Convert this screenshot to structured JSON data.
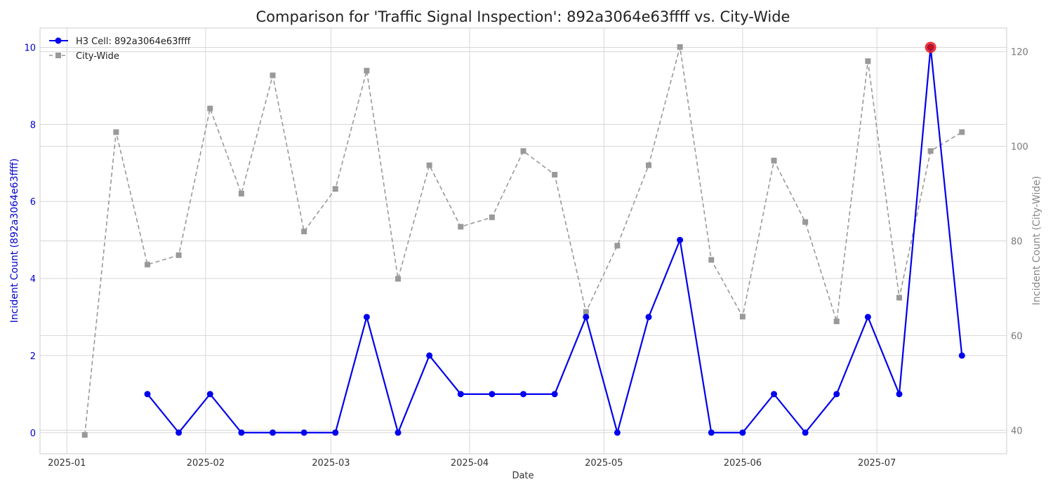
{
  "chart_data": {
    "type": "line",
    "title": "Comparison for 'Traffic Signal Inspection': 892a3064e63ffff vs. City-Wide",
    "xlabel": "Date",
    "ylabel_left": "Incident Count (892a3064e63ffff)",
    "ylabel_right": "Incident Count (City-Wide)",
    "x_ticks": [
      "2025-01",
      "2025-02",
      "2025-03",
      "2025-04",
      "2025-05",
      "2025-06",
      "2025-07"
    ],
    "x_range": [
      "2024-12-26",
      "2025-07-30"
    ],
    "ylim_left": [
      -0.55,
      10.5
    ],
    "ylim_right": [
      35,
      125
    ],
    "yticks_left": [
      0,
      2,
      4,
      6,
      8,
      10
    ],
    "yticks_right": [
      40,
      60,
      80,
      100,
      120
    ],
    "grid": true,
    "legend_position": "top-left",
    "colors": {
      "h3": "#0000ee",
      "city": "#999999",
      "highlight": "#ee2222"
    },
    "series": [
      {
        "name": "H3 Cell: 892a3064e63ffff",
        "axis": "left",
        "style": "solid-circle",
        "x": [
          "2025-01-19",
          "2025-01-26",
          "2025-02-02",
          "2025-02-09",
          "2025-02-16",
          "2025-02-23",
          "2025-03-02",
          "2025-03-09",
          "2025-03-16",
          "2025-03-23",
          "2025-03-30",
          "2025-04-06",
          "2025-04-13",
          "2025-04-20",
          "2025-04-27",
          "2025-05-04",
          "2025-05-11",
          "2025-05-18",
          "2025-05-25",
          "2025-06-01",
          "2025-06-08",
          "2025-06-15",
          "2025-06-22",
          "2025-06-29",
          "2025-07-06",
          "2025-07-13",
          "2025-07-20"
        ],
        "values": [
          1,
          0,
          1,
          0,
          0,
          0,
          0,
          3,
          0,
          2,
          1,
          1,
          1,
          1,
          3,
          0,
          3,
          5,
          0,
          0,
          1,
          0,
          1,
          3,
          1,
          10,
          2
        ]
      },
      {
        "name": "City-Wide",
        "axis": "right",
        "style": "dashed-square",
        "x": [
          "2025-01-05",
          "2025-01-12",
          "2025-01-19",
          "2025-01-26",
          "2025-02-02",
          "2025-02-09",
          "2025-02-16",
          "2025-02-23",
          "2025-03-02",
          "2025-03-09",
          "2025-03-16",
          "2025-03-23",
          "2025-03-30",
          "2025-04-06",
          "2025-04-13",
          "2025-04-20",
          "2025-04-27",
          "2025-05-04",
          "2025-05-11",
          "2025-05-18",
          "2025-05-25",
          "2025-06-01",
          "2025-06-08",
          "2025-06-15",
          "2025-06-22",
          "2025-06-29",
          "2025-07-06",
          "2025-07-13",
          "2025-07-20"
        ],
        "values": [
          39,
          103,
          75,
          77,
          108,
          90,
          115,
          82,
          91,
          116,
          72,
          96,
          83,
          85,
          99,
          94,
          65,
          79,
          96,
          121,
          76,
          64,
          97,
          84,
          63,
          118,
          68,
          99,
          103
        ]
      }
    ],
    "highlight": {
      "series": "H3 Cell: 892a3064e63ffff",
      "x": "2025-07-13",
      "value": 10
    }
  }
}
